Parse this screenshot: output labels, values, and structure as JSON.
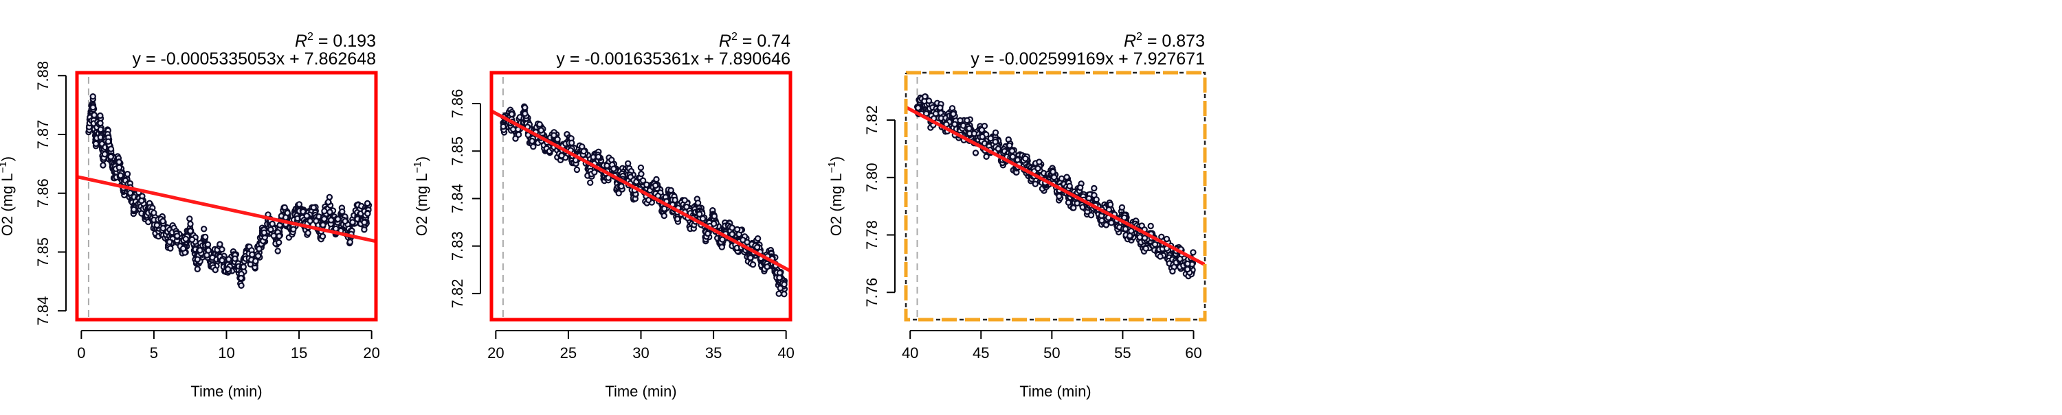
{
  "chart_data": [
    {
      "type": "scatter",
      "title": "",
      "r2_label": "0.193",
      "equation": "y = -0.0005335053x + 7.862648",
      "xlabel": "Time (min)",
      "ylabel": "O2 (mg L",
      "ylabel_sup": "−1",
      "ylabel_end": ")",
      "xlim": [
        -0.3,
        20.3
      ],
      "ylim": [
        7.8385,
        7.8805
      ],
      "xticks": [
        0,
        5,
        10,
        15,
        20
      ],
      "yticks": [
        7.84,
        7.85,
        7.86,
        7.87,
        7.88
      ],
      "ytick_labels": [
        "7.84",
        "7.85",
        "7.86",
        "7.87",
        "7.88"
      ],
      "vline_x": 0.5,
      "fit": {
        "slope": -0.0005335053,
        "intercept": 7.862648
      },
      "box_color": "#ff0000",
      "box_style": "solid",
      "series": [
        {
          "x": [
            0.5,
            0.8,
            1.0,
            1.3,
            1.5,
            1.8,
            2.0,
            2.3,
            2.6,
            2.9,
            3.2,
            3.6,
            4.0,
            4.4,
            4.8,
            5.2,
            5.6,
            6.0,
            6.5,
            7.0,
            7.5,
            8.0,
            8.5,
            9.0,
            9.5,
            10.0,
            10.5,
            11.0,
            11.5,
            12.0,
            12.5,
            13.0,
            13.5,
            14.0,
            14.5,
            15.0,
            15.5,
            16.0,
            16.5,
            17.0,
            17.5,
            18.0,
            18.5,
            19.0,
            19.5,
            19.8
          ],
          "y": [
            7.871,
            7.875,
            7.869,
            7.872,
            7.866,
            7.87,
            7.867,
            7.864,
            7.865,
            7.861,
            7.862,
            7.858,
            7.859,
            7.856,
            7.857,
            7.854,
            7.855,
            7.852,
            7.853,
            7.851,
            7.854,
            7.849,
            7.852,
            7.848,
            7.85,
            7.847,
            7.849,
            7.846,
            7.851,
            7.848,
            7.853,
            7.855,
            7.852,
            7.857,
            7.854,
            7.858,
            7.855,
            7.857,
            7.853,
            7.858,
            7.854,
            7.856,
            7.853,
            7.857,
            7.855,
            7.858
          ]
        }
      ]
    },
    {
      "type": "scatter",
      "title": "",
      "r2_label": "0.74",
      "equation": "y = -0.001635361x + 7.890646",
      "xlabel": "Time (min)",
      "ylabel": "O2 (mg L",
      "ylabel_sup": "−1",
      "ylabel_end": ")",
      "xlim": [
        19.7,
        40.3
      ],
      "ylim": [
        7.8145,
        7.8665
      ],
      "xticks": [
        20,
        25,
        30,
        35,
        40
      ],
      "yticks": [
        7.82,
        7.83,
        7.84,
        7.85,
        7.86
      ],
      "ytick_labels": [
        "7.82",
        "7.83",
        "7.84",
        "7.85",
        "7.86"
      ],
      "vline_x": 20.5,
      "fit": {
        "slope": -0.001635361,
        "intercept": 7.890646
      },
      "box_color": "#ff0000",
      "box_style": "solid",
      "series": [
        {
          "x": [
            20.5,
            21.0,
            21.5,
            22.0,
            22.5,
            23.0,
            23.5,
            24.0,
            24.5,
            25.0,
            25.5,
            26.0,
            26.5,
            27.0,
            27.5,
            28.0,
            28.5,
            29.0,
            29.5,
            30.0,
            30.5,
            31.0,
            31.5,
            32.0,
            32.5,
            33.0,
            33.5,
            34.0,
            34.5,
            35.0,
            35.5,
            36.0,
            36.5,
            37.0,
            37.5,
            38.0,
            38.5,
            39.0,
            39.5,
            39.9
          ],
          "y": [
            7.855,
            7.857,
            7.854,
            7.858,
            7.852,
            7.855,
            7.851,
            7.853,
            7.849,
            7.852,
            7.848,
            7.85,
            7.846,
            7.849,
            7.845,
            7.847,
            7.843,
            7.846,
            7.842,
            7.844,
            7.84,
            7.843,
            7.838,
            7.841,
            7.837,
            7.839,
            7.835,
            7.838,
            7.833,
            7.836,
            7.831,
            7.834,
            7.83,
            7.832,
            7.828,
            7.83,
            7.826,
            7.828,
            7.823,
            7.822
          ]
        }
      ]
    },
    {
      "type": "scatter",
      "title": "",
      "r2_label": "0.873",
      "equation": "y = -0.002599169x + 7.927671",
      "xlabel": "Time (min)",
      "ylabel": "O2 (mg L",
      "ylabel_sup": "−1",
      "ylabel_end": ")",
      "xlim": [
        39.7,
        60.8
      ],
      "ylim": [
        7.7505,
        7.8365
      ],
      "xticks": [
        40,
        45,
        50,
        55,
        60
      ],
      "yticks": [
        7.76,
        7.78,
        7.8,
        7.82
      ],
      "ytick_labels": [
        "7.76",
        "7.78",
        "7.80",
        "7.82"
      ],
      "vline_x": 40.5,
      "fit": {
        "slope": -0.002599169,
        "intercept": 7.927671
      },
      "box_color": "#f5a623",
      "box_style": "dashed",
      "series": [
        {
          "x": [
            40.5,
            41.0,
            41.5,
            42.0,
            42.5,
            43.0,
            43.5,
            44.0,
            44.5,
            45.0,
            45.5,
            46.0,
            46.5,
            47.0,
            47.5,
            48.0,
            48.5,
            49.0,
            49.5,
            50.0,
            50.5,
            51.0,
            51.5,
            52.0,
            52.5,
            53.0,
            53.5,
            54.0,
            54.5,
            55.0,
            55.5,
            56.0,
            56.5,
            57.0,
            57.5,
            58.0,
            58.5,
            59.0,
            59.5,
            60.0
          ],
          "y": [
            7.823,
            7.826,
            7.822,
            7.824,
            7.819,
            7.821,
            7.816,
            7.818,
            7.812,
            7.815,
            7.81,
            7.813,
            7.807,
            7.81,
            7.804,
            7.807,
            7.801,
            7.803,
            7.798,
            7.801,
            7.796,
            7.798,
            7.792,
            7.795,
            7.79,
            7.792,
            7.786,
            7.789,
            7.784,
            7.786,
            7.78,
            7.783,
            7.777,
            7.78,
            7.774,
            7.777,
            7.771,
            7.773,
            7.768,
            7.77
          ]
        }
      ]
    }
  ]
}
